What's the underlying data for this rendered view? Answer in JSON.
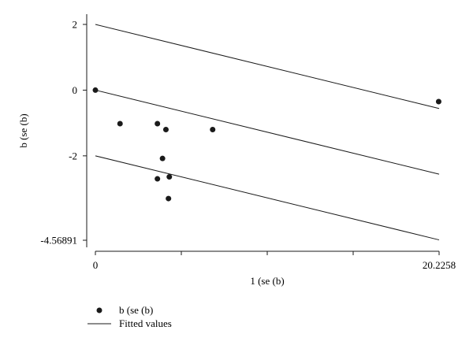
{
  "chart_data": {
    "type": "scatter",
    "xlabel": "1 (se (b)",
    "ylabel": "b (se (b)",
    "xlim": [
      0,
      20.2258
    ],
    "ylim": [
      -4.56891,
      2
    ],
    "x_ticks": [
      0,
      5.05645,
      10.1129,
      15.16935,
      20.2258
    ],
    "x_tick_labels": [
      "0",
      "",
      "",
      "",
      "20.2258"
    ],
    "y_ticks": [
      -4.56891,
      -2,
      0,
      2
    ],
    "y_tick_labels": [
      "-4.56891",
      "-2",
      "0",
      "2"
    ],
    "points": [
      {
        "x": 0.0,
        "y": 0.0
      },
      {
        "x": 1.45,
        "y": -1.02
      },
      {
        "x": 3.65,
        "y": -1.02
      },
      {
        "x": 4.15,
        "y": -1.2
      },
      {
        "x": 6.9,
        "y": -1.2
      },
      {
        "x": 3.95,
        "y": -2.08
      },
      {
        "x": 3.65,
        "y": -2.7
      },
      {
        "x": 4.35,
        "y": -2.64
      },
      {
        "x": 4.3,
        "y": -3.3
      },
      {
        "x": 20.2,
        "y": -0.35
      }
    ],
    "fitted_lines": [
      {
        "intercept": 2,
        "slope": -0.1265
      },
      {
        "intercept": 0,
        "slope": -0.1265
      },
      {
        "intercept": -2,
        "slope": -0.1265
      }
    ],
    "legend": {
      "placement": "bottom-left",
      "entries": [
        {
          "label": "b (se (b)",
          "marker": "dot"
        },
        {
          "label": "Fitted values",
          "marker": "line"
        }
      ]
    },
    "grid": false,
    "colors": {
      "ink": "#1a1a1a",
      "background": "#ffffff"
    }
  }
}
